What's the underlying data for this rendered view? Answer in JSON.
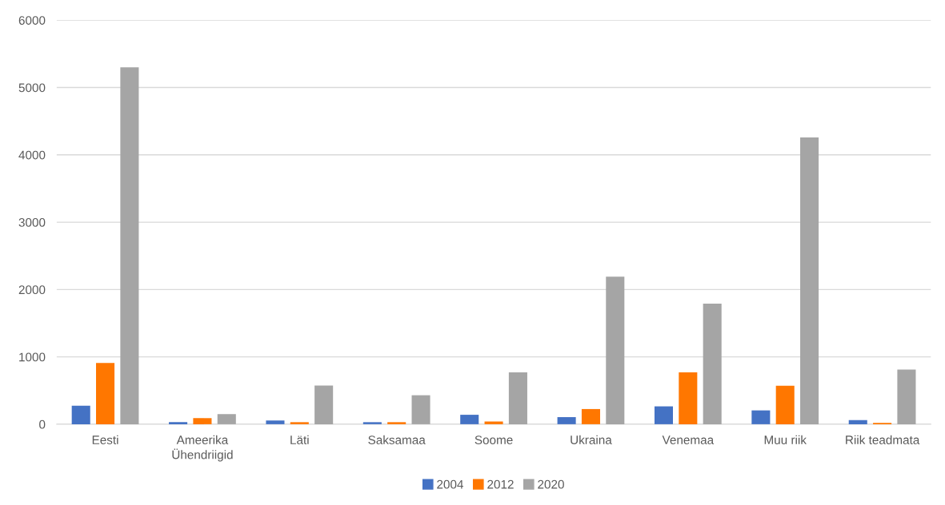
{
  "chart_data": {
    "type": "bar",
    "categories": [
      "Eesti",
      "Ameerika\nÜhendriigid",
      "Läti",
      "Saksamaa",
      "Soome",
      "Ukraina",
      "Venemaa",
      "Muu riik",
      "Riik teadmata"
    ],
    "series": [
      {
        "name": "2004",
        "color": "#4472c4",
        "values": [
          275,
          30,
          55,
          30,
          140,
          105,
          265,
          205,
          60
        ]
      },
      {
        "name": "2012",
        "color": "#ff7700",
        "values": [
          910,
          90,
          30,
          30,
          40,
          225,
          770,
          570,
          20
        ]
      },
      {
        "name": "2020",
        "color": "#a5a5a5",
        "values": [
          5300,
          150,
          575,
          430,
          770,
          2190,
          1790,
          4260,
          810
        ]
      }
    ],
    "ylim": [
      0,
      6000
    ],
    "yticks": [
      0,
      1000,
      2000,
      3000,
      4000,
      5000,
      6000
    ],
    "grid": "y",
    "legend": "bottom"
  }
}
